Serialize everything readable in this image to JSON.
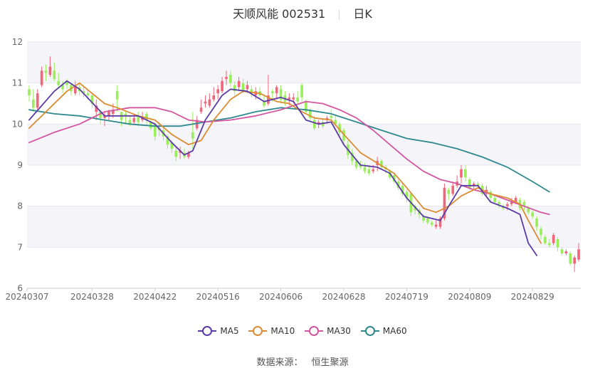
{
  "header": {
    "stock_name": "天顺风能 002531",
    "period": "日K"
  },
  "footer": {
    "source_label": "数据来源：",
    "source_name": "恒生聚源"
  },
  "colors": {
    "up": "#F1667A",
    "down": "#9AEE5A",
    "ma5": "#5B3BA5",
    "ma10": "#DD8C34",
    "ma30": "#D455A0",
    "ma60": "#2E8A8E",
    "grid_band": "#F4F4F9",
    "grid_line": "#E6E6EE"
  },
  "chart_data": {
    "type": "candlestick",
    "title": "天顺风能 002531",
    "ylim": [
      6,
      12
    ],
    "yticks": [
      6,
      7,
      8,
      9,
      10,
      11,
      12
    ],
    "xticks": [
      "20240307",
      "20240328",
      "20240422",
      "20240516",
      "20240606",
      "20240628",
      "20240719",
      "20240809",
      "20240829"
    ],
    "xtick_indices": [
      0,
      15,
      30,
      45,
      60,
      75,
      90,
      105,
      120
    ],
    "legend_position": "bottom",
    "series_names": [
      "MA5",
      "MA10",
      "MA30",
      "MA60"
    ],
    "candles_ohlc": [
      [
        10.85,
        10.7,
        10.95,
        10.55
      ],
      [
        10.6,
        10.4,
        10.85,
        10.3
      ],
      [
        10.4,
        10.75,
        10.85,
        10.35
      ],
      [
        10.95,
        11.3,
        11.4,
        10.9
      ],
      [
        11.3,
        11.25,
        11.45,
        11.05
      ],
      [
        11.2,
        11.4,
        11.65,
        11.15
      ],
      [
        11.3,
        11.1,
        11.5,
        11.05
      ],
      [
        11.05,
        10.95,
        11.25,
        10.9
      ],
      [
        10.95,
        10.85,
        11.05,
        10.75
      ],
      [
        11.05,
        10.95,
        11.1,
        10.85
      ],
      [
        10.95,
        10.8,
        11.0,
        10.7
      ],
      [
        10.75,
        10.9,
        11.05,
        10.7
      ],
      [
        10.9,
        10.8,
        11.0,
        10.7
      ],
      [
        10.8,
        10.75,
        10.9,
        10.65
      ],
      [
        10.75,
        10.7,
        10.85,
        10.6
      ],
      [
        10.7,
        10.5,
        10.75,
        10.4
      ],
      [
        10.3,
        10.45,
        10.6,
        10.1
      ],
      [
        10.3,
        10.15,
        10.35,
        10.0
      ],
      [
        10.15,
        10.2,
        10.3,
        9.95
      ],
      [
        10.2,
        10.3,
        10.35,
        10.1
      ],
      [
        10.25,
        10.35,
        10.5,
        10.15
      ],
      [
        10.8,
        10.6,
        10.95,
        10.3
      ],
      [
        10.3,
        10.1,
        10.3,
        9.95
      ],
      [
        10.25,
        10.2,
        10.3,
        10.0
      ],
      [
        10.1,
        10.0,
        10.2,
        9.95
      ],
      [
        10.05,
        10.15,
        10.25,
        10.0
      ],
      [
        10.2,
        10.05,
        10.3,
        9.95
      ],
      [
        10.1,
        10.15,
        10.3,
        10.05
      ],
      [
        10.25,
        10.1,
        10.3,
        10.0
      ],
      [
        10.05,
        9.9,
        10.15,
        9.85
      ],
      [
        10.0,
        9.7,
        10.05,
        9.6
      ],
      [
        9.9,
        9.85,
        10.05,
        9.7
      ],
      [
        9.85,
        9.7,
        9.9,
        9.6
      ],
      [
        9.7,
        9.5,
        9.75,
        9.4
      ],
      [
        9.55,
        9.4,
        9.6,
        9.3
      ],
      [
        9.35,
        9.2,
        9.45,
        9.1
      ],
      [
        9.3,
        9.35,
        9.45,
        9.15
      ],
      [
        9.3,
        9.2,
        9.4,
        9.15
      ],
      [
        9.2,
        9.3,
        9.35,
        9.15
      ],
      [
        9.8,
        9.65,
        10.3,
        9.4
      ],
      [
        9.9,
        10.1,
        10.2,
        9.85
      ],
      [
        10.3,
        10.4,
        10.6,
        10.25
      ],
      [
        10.5,
        10.55,
        10.7,
        10.4
      ],
      [
        10.45,
        10.6,
        10.75,
        10.4
      ],
      [
        10.6,
        10.7,
        10.9,
        10.55
      ],
      [
        10.75,
        10.85,
        10.95,
        10.6
      ],
      [
        10.8,
        11.05,
        11.15,
        10.75
      ],
      [
        11.1,
        11.15,
        11.3,
        10.95
      ],
      [
        11.2,
        11.0,
        11.3,
        10.9
      ],
      [
        10.95,
        10.8,
        11.05,
        10.65
      ],
      [
        10.9,
        11.05,
        11.15,
        10.8
      ],
      [
        11.0,
        10.8,
        11.1,
        10.75
      ],
      [
        10.85,
        10.95,
        11.05,
        10.75
      ],
      [
        10.85,
        10.75,
        10.95,
        10.65
      ],
      [
        10.7,
        10.8,
        10.9,
        10.6
      ],
      [
        10.8,
        10.7,
        10.9,
        10.6
      ],
      [
        10.55,
        10.45,
        10.7,
        10.4
      ],
      [
        10.5,
        10.7,
        11.2,
        10.45
      ],
      [
        10.8,
        10.75,
        10.85,
        10.55
      ],
      [
        10.75,
        10.9,
        10.95,
        10.6
      ],
      [
        10.85,
        10.6,
        10.95,
        10.5
      ],
      [
        10.7,
        10.55,
        10.8,
        10.45
      ],
      [
        10.6,
        10.65,
        10.75,
        10.45
      ],
      [
        10.6,
        10.65,
        10.75,
        10.5
      ],
      [
        10.65,
        10.55,
        10.8,
        10.5
      ],
      [
        10.95,
        10.65,
        11.0,
        10.55
      ],
      [
        10.55,
        10.3,
        10.6,
        10.25
      ],
      [
        10.35,
        10.15,
        10.4,
        10.05
      ],
      [
        10.1,
        9.9,
        10.2,
        9.85
      ],
      [
        10.0,
        10.05,
        10.1,
        9.9
      ],
      [
        10.05,
        9.95,
        10.15,
        9.9
      ],
      [
        10.1,
        10.15,
        10.2,
        10.0
      ],
      [
        10.2,
        10.15,
        10.35,
        10.1
      ],
      [
        10.1,
        10.0,
        10.2,
        9.95
      ],
      [
        10.0,
        9.8,
        10.05,
        9.7
      ],
      [
        9.85,
        9.6,
        9.9,
        9.5
      ],
      [
        9.5,
        9.25,
        9.6,
        9.15
      ],
      [
        9.3,
        9.1,
        9.4,
        9.0
      ],
      [
        9.1,
        8.95,
        9.15,
        8.9
      ],
      [
        9.0,
        8.95,
        9.1,
        8.9
      ],
      [
        8.95,
        8.85,
        9.05,
        8.8
      ],
      [
        8.9,
        8.8,
        9.0,
        8.75
      ],
      [
        8.85,
        8.9,
        9.0,
        8.8
      ],
      [
        9.0,
        9.1,
        9.2,
        8.85
      ],
      [
        9.1,
        8.95,
        9.15,
        8.9
      ],
      [
        8.95,
        8.9,
        9.0,
        8.8
      ],
      [
        8.85,
        8.7,
        8.9,
        8.65
      ],
      [
        8.75,
        8.6,
        8.8,
        8.55
      ],
      [
        8.6,
        8.45,
        8.65,
        8.4
      ],
      [
        8.5,
        8.3,
        8.55,
        8.25
      ],
      [
        8.35,
        8.2,
        8.4,
        8.1
      ],
      [
        8.3,
        7.85,
        8.35,
        7.75
      ],
      [
        8.0,
        7.9,
        8.05,
        7.8
      ],
      [
        7.9,
        7.8,
        7.95,
        7.7
      ],
      [
        7.75,
        7.65,
        7.8,
        7.6
      ],
      [
        7.7,
        7.6,
        7.75,
        7.55
      ],
      [
        7.6,
        7.55,
        7.65,
        7.5
      ],
      [
        7.5,
        7.55,
        7.65,
        7.45
      ],
      [
        7.5,
        7.7,
        7.75,
        7.45
      ],
      [
        7.7,
        8.45,
        8.55,
        7.65
      ],
      [
        8.4,
        8.3,
        8.45,
        8.15
      ],
      [
        8.3,
        8.5,
        8.6,
        8.25
      ],
      [
        8.5,
        8.6,
        8.75,
        8.45
      ],
      [
        8.7,
        8.9,
        9.0,
        8.55
      ],
      [
        8.9,
        8.7,
        9.0,
        8.6
      ],
      [
        8.65,
        8.45,
        8.7,
        8.4
      ],
      [
        8.5,
        8.55,
        8.6,
        8.4
      ],
      [
        8.55,
        8.5,
        8.6,
        8.4
      ],
      [
        8.5,
        8.3,
        8.55,
        8.25
      ],
      [
        8.3,
        8.4,
        8.5,
        8.25
      ],
      [
        8.35,
        8.2,
        8.4,
        8.1
      ],
      [
        8.2,
        8.1,
        8.25,
        8.05
      ],
      [
        8.1,
        8.05,
        8.15,
        7.95
      ],
      [
        8.0,
        7.95,
        8.05,
        7.9
      ],
      [
        8.0,
        8.05,
        8.1,
        7.9
      ],
      [
        8.05,
        8.1,
        8.2,
        8.0
      ],
      [
        8.1,
        8.2,
        8.25,
        8.05
      ],
      [
        8.15,
        7.95,
        8.2,
        7.9
      ],
      [
        8.1,
        8.0,
        8.15,
        7.9
      ],
      [
        7.95,
        7.85,
        8.0,
        7.8
      ],
      [
        7.85,
        7.75,
        7.9,
        7.7
      ],
      [
        7.7,
        7.5,
        7.75,
        7.4
      ],
      [
        7.45,
        7.3,
        7.5,
        7.2
      ],
      [
        7.25,
        7.1,
        7.3,
        7.05
      ],
      [
        7.1,
        7.05,
        7.2,
        7.0
      ],
      [
        7.1,
        7.3,
        7.35,
        7.05
      ],
      [
        7.2,
        7.0,
        7.25,
        6.9
      ],
      [
        6.95,
        6.85,
        7.0,
        6.8
      ],
      [
        6.85,
        6.9,
        6.95,
        6.8
      ],
      [
        6.85,
        6.6,
        6.9,
        6.55
      ],
      [
        6.6,
        6.75,
        6.8,
        6.4
      ],
      [
        6.7,
        6.95,
        7.1,
        6.65
      ]
    ],
    "ma5": [
      [
        0,
        10.1
      ],
      [
        6,
        10.8
      ],
      [
        9,
        11.05
      ],
      [
        12,
        10.85
      ],
      [
        18,
        10.2
      ],
      [
        22,
        10.2
      ],
      [
        26,
        10.2
      ],
      [
        30,
        10.0
      ],
      [
        34,
        9.55
      ],
      [
        37,
        9.25
      ],
      [
        39,
        9.35
      ],
      [
        42,
        10.1
      ],
      [
        46,
        10.7
      ],
      [
        48,
        10.85
      ],
      [
        52,
        10.8
      ],
      [
        56,
        10.55
      ],
      [
        60,
        10.65
      ],
      [
        63,
        10.55
      ],
      [
        66,
        10.1
      ],
      [
        69,
        10.0
      ],
      [
        72,
        10.05
      ],
      [
        75,
        9.5
      ],
      [
        79,
        9.0
      ],
      [
        83,
        8.95
      ],
      [
        86,
        8.8
      ],
      [
        90,
        8.2
      ],
      [
        94,
        7.75
      ],
      [
        98,
        7.65
      ],
      [
        100,
        8.0
      ],
      [
        103,
        8.5
      ],
      [
        107,
        8.5
      ],
      [
        110,
        8.1
      ],
      [
        114,
        7.95
      ],
      [
        117,
        7.8
      ],
      [
        119,
        7.1
      ],
      [
        121,
        6.8
      ]
    ],
    "ma10": [
      [
        0,
        9.9
      ],
      [
        5,
        10.4
      ],
      [
        9,
        10.8
      ],
      [
        12,
        11.0
      ],
      [
        18,
        10.5
      ],
      [
        21,
        10.4
      ],
      [
        26,
        10.2
      ],
      [
        30,
        10.1
      ],
      [
        34,
        9.75
      ],
      [
        38,
        9.5
      ],
      [
        41,
        9.6
      ],
      [
        44,
        10.1
      ],
      [
        48,
        10.6
      ],
      [
        51,
        10.8
      ],
      [
        55,
        10.75
      ],
      [
        59,
        10.55
      ],
      [
        62,
        10.5
      ],
      [
        65,
        10.3
      ],
      [
        68,
        10.15
      ],
      [
        72,
        10.1
      ],
      [
        75,
        9.75
      ],
      [
        79,
        9.3
      ],
      [
        83,
        9.05
      ],
      [
        87,
        8.8
      ],
      [
        90,
        8.45
      ],
      [
        94,
        7.95
      ],
      [
        97,
        7.85
      ],
      [
        100,
        8.0
      ],
      [
        103,
        8.25
      ],
      [
        107,
        8.45
      ],
      [
        110,
        8.3
      ],
      [
        114,
        8.2
      ],
      [
        117,
        8.05
      ],
      [
        119,
        7.65
      ],
      [
        122,
        7.1
      ]
    ],
    "ma30": [
      [
        0,
        9.55
      ],
      [
        6,
        9.8
      ],
      [
        12,
        10.0
      ],
      [
        18,
        10.3
      ],
      [
        24,
        10.4
      ],
      [
        30,
        10.4
      ],
      [
        34,
        10.3
      ],
      [
        38,
        10.1
      ],
      [
        42,
        10.05
      ],
      [
        48,
        10.1
      ],
      [
        54,
        10.2
      ],
      [
        60,
        10.35
      ],
      [
        66,
        10.55
      ],
      [
        70,
        10.5
      ],
      [
        74,
        10.35
      ],
      [
        78,
        10.15
      ],
      [
        82,
        9.85
      ],
      [
        86,
        9.5
      ],
      [
        90,
        9.15
      ],
      [
        94,
        8.85
      ],
      [
        98,
        8.65
      ],
      [
        102,
        8.55
      ],
      [
        106,
        8.4
      ],
      [
        110,
        8.3
      ],
      [
        114,
        8.15
      ],
      [
        118,
        8.0
      ],
      [
        122,
        7.85
      ],
      [
        124,
        7.8
      ]
    ],
    "ma60": [
      [
        0,
        10.35
      ],
      [
        6,
        10.25
      ],
      [
        12,
        10.2
      ],
      [
        18,
        10.1
      ],
      [
        24,
        10.0
      ],
      [
        30,
        9.95
      ],
      [
        36,
        9.95
      ],
      [
        42,
        10.05
      ],
      [
        48,
        10.15
      ],
      [
        54,
        10.3
      ],
      [
        60,
        10.4
      ],
      [
        66,
        10.35
      ],
      [
        72,
        10.25
      ],
      [
        78,
        10.05
      ],
      [
        84,
        9.85
      ],
      [
        90,
        9.65
      ],
      [
        96,
        9.55
      ],
      [
        102,
        9.4
      ],
      [
        108,
        9.2
      ],
      [
        114,
        8.95
      ],
      [
        120,
        8.6
      ],
      [
        124,
        8.35
      ]
    ]
  }
}
